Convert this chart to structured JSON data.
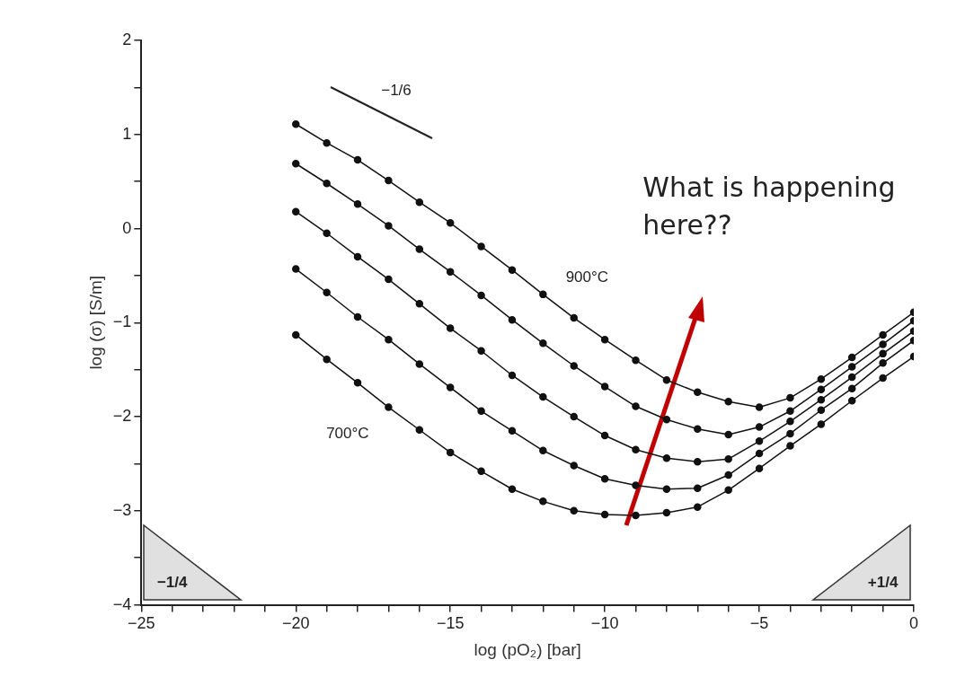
{
  "chart_data": {
    "type": "line",
    "xlabel": "log (pO₂) [bar]",
    "ylabel": "log (σ) [S/m]",
    "x": [
      -20,
      -19,
      -18,
      -17,
      -16,
      -15,
      -14,
      -13,
      -12,
      -11,
      -10,
      -9,
      -8,
      -7,
      -6,
      -5,
      -4,
      -3,
      -2,
      -1,
      0
    ],
    "series": [
      {
        "color": "#111111",
        "values": [
          1.11,
          0.91,
          0.73,
          0.51,
          0.28,
          0.06,
          -0.19,
          -0.44,
          -0.7,
          -0.95,
          -1.18,
          -1.4,
          -1.61,
          -1.74,
          -1.84,
          -1.9,
          -1.8,
          -1.6,
          -1.37,
          -1.13,
          -0.89
        ]
      },
      {
        "color": "#111111",
        "values": [
          0.69,
          0.48,
          0.26,
          0.03,
          -0.22,
          -0.46,
          -0.71,
          -0.97,
          -1.22,
          -1.46,
          -1.68,
          -1.89,
          -2.03,
          -2.13,
          -2.19,
          -2.11,
          -1.94,
          -1.71,
          -1.47,
          -1.23,
          -0.98
        ]
      },
      {
        "color": "#111111",
        "values": [
          0.18,
          -0.05,
          -0.3,
          -0.54,
          -0.8,
          -1.06,
          -1.3,
          -1.56,
          -1.79,
          -2.0,
          -2.2,
          -2.35,
          -2.44,
          -2.48,
          -2.45,
          -2.26,
          -2.05,
          -1.82,
          -1.58,
          -1.33,
          -1.09
        ]
      },
      {
        "color": "#111111",
        "values": [
          -0.43,
          -0.68,
          -0.94,
          -1.18,
          -1.44,
          -1.69,
          -1.94,
          -2.15,
          -2.36,
          -2.52,
          -2.66,
          -2.73,
          -2.77,
          -2.76,
          -2.62,
          -2.39,
          -2.18,
          -1.93,
          -1.7,
          -1.43,
          -1.19
        ]
      },
      {
        "color": "#111111",
        "values": [
          -1.13,
          -1.39,
          -1.64,
          -1.9,
          -2.14,
          -2.38,
          -2.58,
          -2.77,
          -2.9,
          -3.0,
          -3.04,
          -3.05,
          -3.02,
          -2.96,
          -2.78,
          -2.55,
          -2.31,
          -2.08,
          -1.83,
          -1.59,
          -1.36
        ]
      }
    ],
    "xlim": [
      -25,
      0
    ],
    "xticks": [
      -25,
      {
        "value": -24,
        "label": null
      },
      {
        "value": -23,
        "label": null
      },
      {
        "value": -22,
        "label": null
      },
      {
        "value": -21,
        "label": null
      },
      -20,
      {
        "value": -19,
        "label": null
      },
      {
        "value": -18,
        "label": null
      },
      {
        "value": -17,
        "label": null
      },
      {
        "value": -16,
        "label": null
      },
      -15,
      {
        "value": -14,
        "label": null
      },
      {
        "value": -13,
        "label": null
      },
      {
        "value": -12,
        "label": null
      },
      {
        "value": -11,
        "label": null
      },
      -10,
      {
        "value": -9,
        "label": null
      },
      {
        "value": -8,
        "label": null
      },
      {
        "value": -7,
        "label": null
      },
      {
        "value": -6,
        "label": null
      },
      -5,
      {
        "value": -4,
        "label": null
      },
      {
        "value": -3,
        "label": null
      },
      {
        "value": -2,
        "label": null
      },
      {
        "value": -1,
        "label": null
      },
      0
    ],
    "ylim": [
      -4,
      2
    ],
    "yticks": [
      -4,
      {
        "value": -3.5,
        "label": null
      },
      -3,
      {
        "value": -2.5,
        "label": null
      },
      -2,
      {
        "value": -1.5,
        "label": null
      },
      -1,
      {
        "value": -0.5,
        "label": null
      },
      0,
      {
        "value": 0.5,
        "label": null
      },
      1,
      {
        "value": 1.5,
        "label": null
      },
      2
    ],
    "grid": false,
    "legend": false,
    "marker": "circle",
    "line_style": "solid",
    "annotations": [
      "900°C",
      "700°C",
      "−1/6",
      "−1/4",
      "+1/4",
      "What is happening here??"
    ]
  }
}
